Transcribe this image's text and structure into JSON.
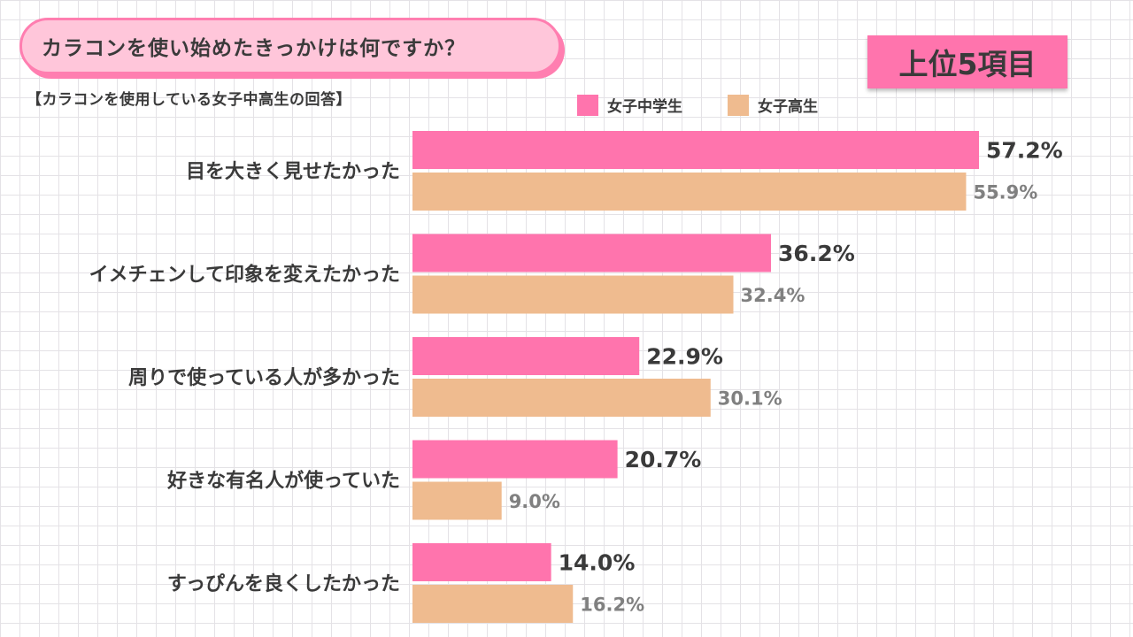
{
  "header": {
    "title": "カラコンを使い始めたきっかけは何ですか？",
    "badge": "上位5項目",
    "subtitle": "【カラコンを使用している女子中高生の回答】"
  },
  "colors": {
    "series_a": "#ff74ad",
    "series_b": "#efbb8f"
  },
  "chart_data": {
    "type": "bar",
    "orientation": "horizontal",
    "categories": [
      "目を大きく見せたかった",
      "イメチェンして印象を変えたかった",
      "周りで使っている人が多かった",
      "好きな有名人が使っていた",
      "すっぴんを良くしたかった"
    ],
    "series": [
      {
        "name": "女子中学生",
        "values": [
          57.2,
          36.2,
          22.9,
          20.7,
          14.0
        ],
        "labels": [
          "57.2%",
          "36.2%",
          "22.9%",
          "20.7%",
          "14.0%"
        ]
      },
      {
        "name": "女子高生",
        "values": [
          55.9,
          32.4,
          30.1,
          9.0,
          16.2
        ],
        "labels": [
          "55.9%",
          "32.4%",
          "30.1%",
          "9.0%",
          "16.2%"
        ]
      }
    ],
    "legend_position": "top-right",
    "grid": true,
    "xlim": [
      0,
      100
    ]
  }
}
